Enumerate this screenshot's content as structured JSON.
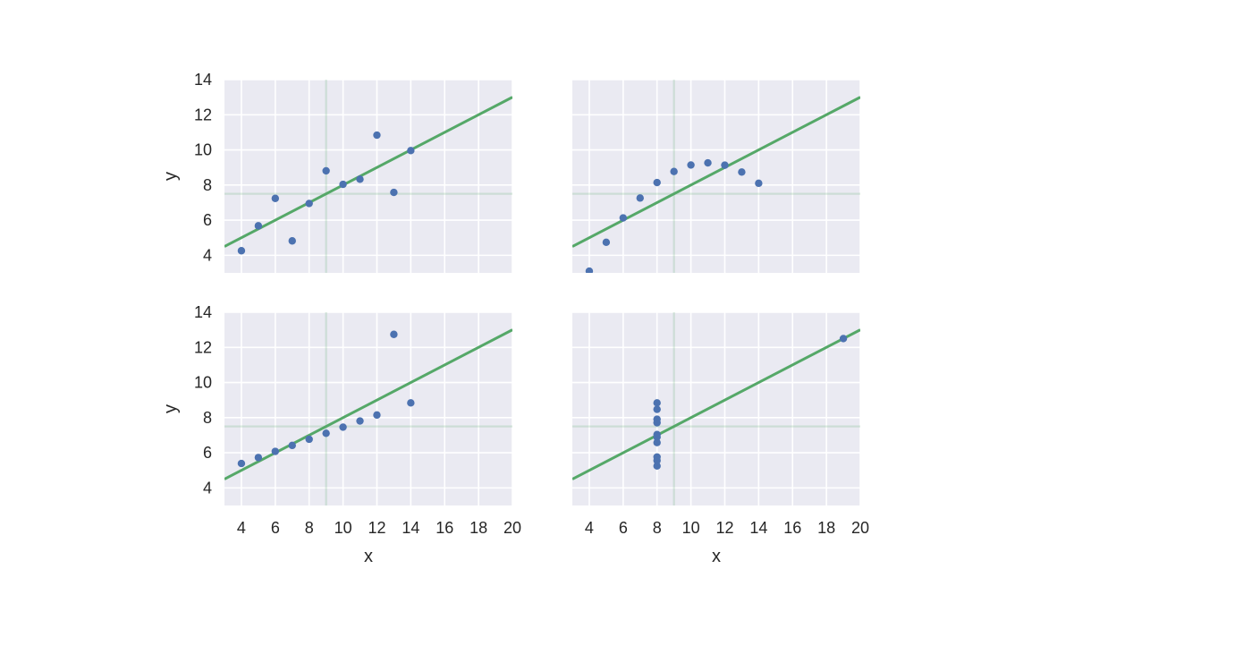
{
  "chart_data": {
    "type": "scatter",
    "layout": "2x2 grid, shared x and y axes",
    "style": "seaborn darkgrid",
    "xlim": [
      3,
      20
    ],
    "ylim": [
      3,
      14
    ],
    "x_ticks": [
      4,
      6,
      8,
      10,
      12,
      14,
      16,
      18,
      20
    ],
    "y_ticks": [
      4,
      6,
      8,
      10,
      12,
      14
    ],
    "xlabel": "x",
    "ylabel": "y",
    "grid": true,
    "colors": {
      "background": "#eaeaf2",
      "grid": "#ffffff",
      "points": "#4c72b0",
      "fit_line": "#55a868",
      "mean_lines": "#55a868",
      "text": "#262626"
    },
    "fit_line": {
      "slope": 0.5,
      "intercept": 3.0
    },
    "mean_lines": {
      "x": 9,
      "y": 7.5
    },
    "panels": [
      {
        "position": "top-left",
        "points": [
          {
            "x": 10,
            "y": 8.04
          },
          {
            "x": 8,
            "y": 6.95
          },
          {
            "x": 13,
            "y": 7.58
          },
          {
            "x": 9,
            "y": 8.81
          },
          {
            "x": 11,
            "y": 8.33
          },
          {
            "x": 14,
            "y": 9.96
          },
          {
            "x": 6,
            "y": 7.24
          },
          {
            "x": 4,
            "y": 4.26
          },
          {
            "x": 12,
            "y": 10.84
          },
          {
            "x": 7,
            "y": 4.82
          },
          {
            "x": 5,
            "y": 5.68
          }
        ]
      },
      {
        "position": "top-right",
        "points": [
          {
            "x": 10,
            "y": 9.14
          },
          {
            "x": 8,
            "y": 8.14
          },
          {
            "x": 13,
            "y": 8.74
          },
          {
            "x": 9,
            "y": 8.77
          },
          {
            "x": 11,
            "y": 9.26
          },
          {
            "x": 14,
            "y": 8.1
          },
          {
            "x": 6,
            "y": 6.13
          },
          {
            "x": 4,
            "y": 3.1
          },
          {
            "x": 12,
            "y": 9.13
          },
          {
            "x": 7,
            "y": 7.26
          },
          {
            "x": 5,
            "y": 4.74
          }
        ]
      },
      {
        "position": "bottom-left",
        "points": [
          {
            "x": 10,
            "y": 7.46
          },
          {
            "x": 8,
            "y": 6.77
          },
          {
            "x": 13,
            "y": 12.74
          },
          {
            "x": 9,
            "y": 7.11
          },
          {
            "x": 11,
            "y": 7.81
          },
          {
            "x": 14,
            "y": 8.84
          },
          {
            "x": 6,
            "y": 6.08
          },
          {
            "x": 4,
            "y": 5.39
          },
          {
            "x": 12,
            "y": 8.15
          },
          {
            "x": 7,
            "y": 6.42
          },
          {
            "x": 5,
            "y": 5.73
          }
        ]
      },
      {
        "position": "bottom-right",
        "points": [
          {
            "x": 8,
            "y": 6.58
          },
          {
            "x": 8,
            "y": 5.76
          },
          {
            "x": 8,
            "y": 7.71
          },
          {
            "x": 8,
            "y": 8.84
          },
          {
            "x": 8,
            "y": 8.47
          },
          {
            "x": 8,
            "y": 7.04
          },
          {
            "x": 8,
            "y": 5.25
          },
          {
            "x": 19,
            "y": 12.5
          },
          {
            "x": 8,
            "y": 5.56
          },
          {
            "x": 8,
            "y": 7.91
          },
          {
            "x": 8,
            "y": 6.89
          }
        ]
      }
    ]
  }
}
